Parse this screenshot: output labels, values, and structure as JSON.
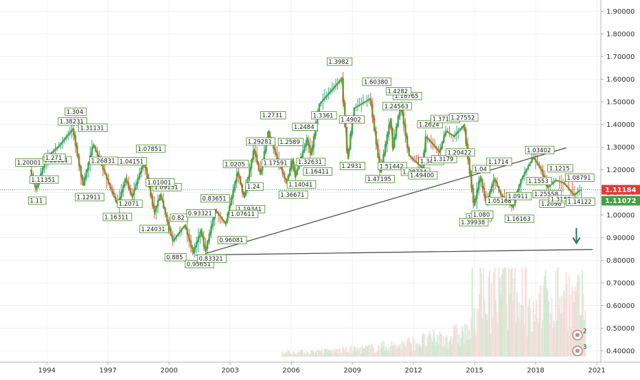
{
  "chart_data": {
    "type": "line",
    "title": "",
    "xlabel": "",
    "ylabel": "",
    "x_range": [
      1991.7,
      2021.2
    ],
    "ylim": [
      0.35,
      1.95
    ],
    "y_ticks": [
      "1.90000",
      "1.80000",
      "1.70000",
      "1.60000",
      "1.50000",
      "1.40000",
      "1.30000",
      "1.20000",
      "1.10000",
      "1.00000",
      "0.90000",
      "0.80000",
      "0.70000",
      "0.60000",
      "0.50000",
      "0.40000"
    ],
    "x_ticks": [
      "1994",
      "1997",
      "2000",
      "2003",
      "2006",
      "2009",
      "2012",
      "2015",
      "2018",
      "2021"
    ],
    "price_labels": [
      {
        "text": "1.11184",
        "color": "#e53935"
      },
      {
        "text": "1.11072",
        "color": "#43a047"
      }
    ],
    "current_price": 1.11184,
    "colors": {
      "up": "#26a69a",
      "down": "#ef5350",
      "zigzag": "#59a821",
      "trend": "#424242",
      "arrow": "#2e7d6f"
    },
    "series": [
      {
        "values": [
          [
            1993.2,
            1.20001
          ],
          [
            1993.5,
            1.1135
          ],
          [
            1993.9,
            1.22821
          ],
          [
            1994.2,
            1.271
          ],
          [
            1994.6,
            1.304
          ],
          [
            1995.3,
            1.38231
          ],
          [
            1995.8,
            1.1291
          ],
          [
            1996.3,
            1.31131
          ],
          [
            1996.5,
            1.26831
          ],
          [
            1997.5,
            1.04151
          ],
          [
            1997.9,
            1.16311
          ],
          [
            1998.2,
            1.07851
          ],
          [
            1998.8,
            1.24031
          ],
          [
            1999.3,
            1.01001
          ],
          [
            1999.6,
            1.09131
          ],
          [
            2000.2,
            0.885
          ],
          [
            2000.8,
            0.95651
          ],
          [
            2001.2,
            0.83321
          ],
          [
            2001.6,
            0.93321
          ],
          [
            2001.8,
            0.83651
          ],
          [
            2002.3,
            1.0205
          ],
          [
            2002.8,
            0.96081
          ],
          [
            2003.4,
            1.19341
          ],
          [
            2003.7,
            1.07611
          ],
          [
            2004.2,
            1.29281
          ],
          [
            2004.5,
            1.17591
          ],
          [
            2004.9,
            1.36671
          ],
          [
            2005.3,
            1.2589
          ],
          [
            2005.8,
            1.14041
          ],
          [
            2006.1,
            1.2484
          ],
          [
            2006.2,
            1.16411
          ],
          [
            2006.8,
            1.3361
          ],
          [
            2007.0,
            1.26331
          ],
          [
            2007.4,
            1.4902
          ],
          [
            2008.5,
            1.6038
          ],
          [
            2008.8,
            1.24563
          ],
          [
            2009.1,
            1.47195
          ],
          [
            2009.9,
            1.51442
          ],
          [
            2010.4,
            1.18765
          ],
          [
            2010.9,
            1.4282
          ],
          [
            2011.0,
            1.28734
          ],
          [
            2011.4,
            1.494
          ],
          [
            2011.8,
            1.2624
          ],
          [
            2012.5,
            1.20422
          ],
          [
            2012.6,
            1.3479
          ],
          [
            2013.0,
            1.31
          ],
          [
            2013.3,
            1.27552
          ],
          [
            2013.6,
            1.37109
          ],
          [
            2014.0,
            1.3477
          ],
          [
            2014.5,
            1.39938
          ],
          [
            2015.0,
            1.04
          ],
          [
            2015.3,
            1.1714
          ],
          [
            2015.6,
            1.05168
          ],
          [
            2016.0,
            1.16163
          ],
          [
            2016.3,
            1.0911
          ],
          [
            2016.9,
            1.03402
          ],
          [
            2017.3,
            1.155
          ],
          [
            2017.9,
            1.2555
          ],
          [
            2018.3,
            1.2
          ],
          [
            2018.6,
            1.1215
          ],
          [
            2019.0,
            1.1535
          ],
          [
            2019.4,
            1.14122
          ],
          [
            2019.9,
            1.08791
          ],
          [
            2020.2,
            1.11184
          ]
        ]
      }
    ],
    "zigzag_labels": [
      "1.20001",
      "1.11",
      "1.11351",
      "1.22821",
      "1.271",
      "1.304",
      "1.38231",
      "1.12911",
      "1.31131",
      "1.26831",
      "1.16311",
      "1.04151",
      "1.2071",
      "1.07851",
      "1.24031",
      "1.09131",
      "1.01001",
      "0.885",
      "0.82",
      "0.95651",
      "0.93321",
      "0.83321",
      "0.83651",
      "0.96081",
      "1.0205",
      "1.19341",
      "1.07611",
      "1.29281",
      "1.24",
      "1.2731",
      "1.17591",
      "1.36671",
      "1.2589",
      "1.14041",
      "1.2484",
      "1.16411",
      "1.32631",
      "1.3361",
      "1.3982",
      "1.2931",
      "1.4902",
      "1.60380",
      "1.47195",
      "1.24563",
      "1.51442",
      "1.18765",
      "1.4282",
      "1.28734",
      "1.49400",
      "1.2624",
      "1.3486",
      "1.3179",
      "1.37109",
      "1.20422",
      "1.27552",
      "1.3477",
      "1.39938",
      "1.04",
      "1.080",
      "1.1714",
      "1.05168",
      "1.16163",
      "1.0911",
      "1.03402",
      "1.1553",
      "1.2098",
      "1.25558",
      "1.1215",
      "1.3153",
      "1.14122",
      "1.08791"
    ],
    "annotations": {
      "level_1": "2",
      "level_2": "3"
    }
  }
}
